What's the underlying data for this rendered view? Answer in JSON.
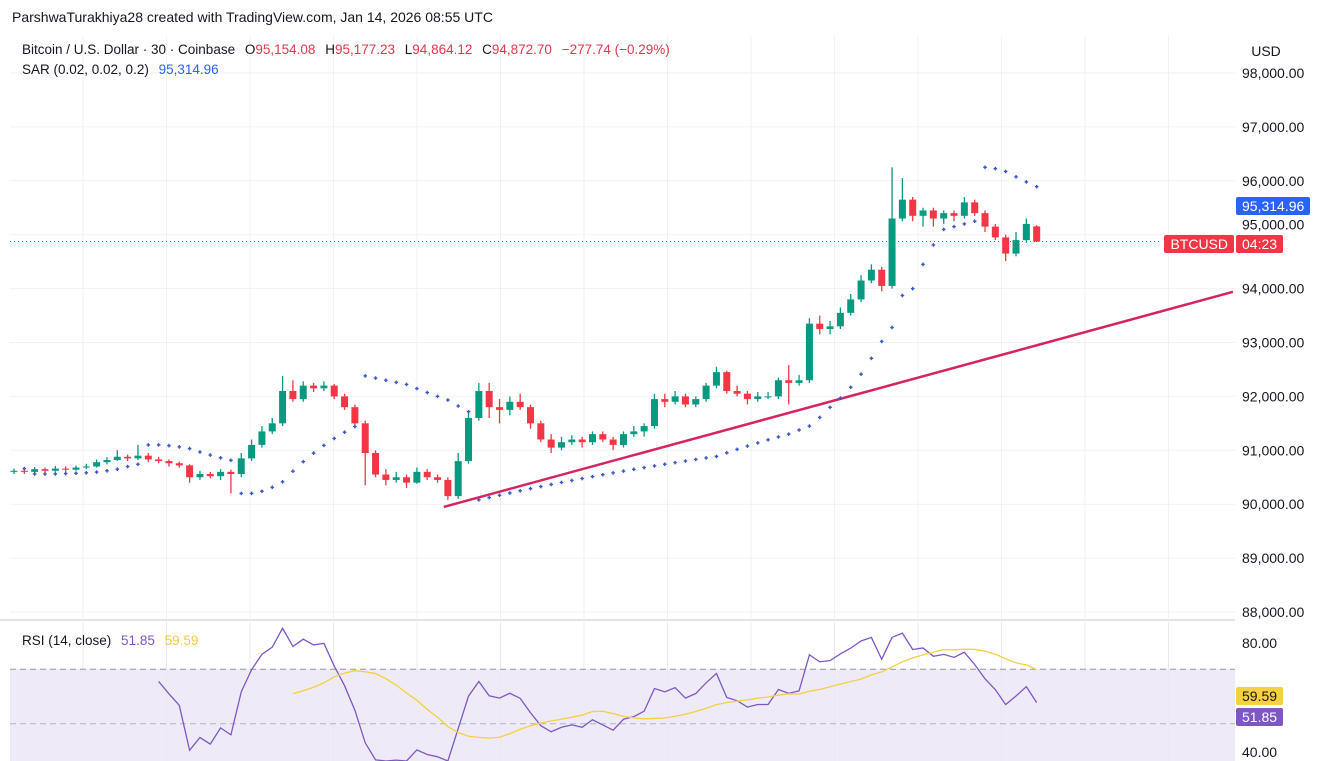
{
  "watermark": "ParshwaTurakhiya28 created with TradingView.com, Jan 14, 2026 08:55 UTC",
  "legend": {
    "symbol": "Bitcoin / U.S. Dollar · 30 · Coinbase",
    "o_label": "O",
    "o": "95,154.08",
    "h_label": "H",
    "h": "95,177.23",
    "l_label": "L",
    "l": "94,864.12",
    "c_label": "C",
    "c": "94,872.70",
    "change": "−277.74 (−0.29%)"
  },
  "sar": {
    "label": "SAR (0.02, 0.02, 0.2)",
    "value": "95,314.96"
  },
  "rsi": {
    "label": "RSI (14, close)",
    "value": "51.85",
    "ma": "59.59"
  },
  "axis": {
    "currency": "USD",
    "ticker": "BTCUSD",
    "countdown": "04:23",
    "last_price": 94872.7,
    "sar_price": 95314.96
  },
  "colors": {
    "up": "#089981",
    "down": "#f23645",
    "sar": "#3b55c9",
    "trendline": "#d6245e",
    "rsi": "#7e57c2",
    "rsi_ma": "#f5d040",
    "rsi_band": "#efeaf8",
    "sar_tag": "#2962ff",
    "price_tag": "#f23645"
  },
  "chart_data": {
    "type": "candlestick",
    "interval": "30",
    "ylim": [
      87650,
      98400
    ],
    "yticks": [
      "98,000.00",
      "97,000.00",
      "96,000.00",
      "95,000.00",
      "94,000.00",
      "93,000.00",
      "92,000.00",
      "91,000.00",
      "90,000.00",
      "89,000.00",
      "88,000.00"
    ],
    "ytick_values": [
      98000,
      97000,
      96000,
      95000,
      94000,
      93000,
      92000,
      91000,
      90000,
      89000,
      88000
    ],
    "grid": true,
    "candles": [
      [
        90600,
        90660,
        90560,
        90620
      ],
      [
        90620,
        90650,
        90560,
        90600
      ],
      [
        90600,
        90690,
        90580,
        90650
      ],
      [
        90650,
        90680,
        90580,
        90620
      ],
      [
        90620,
        90710,
        90600,
        90660
      ],
      [
        90660,
        90700,
        90600,
        90640
      ],
      [
        90640,
        90720,
        90620,
        90680
      ],
      [
        90680,
        90750,
        90650,
        90700
      ],
      [
        90700,
        90830,
        90680,
        90780
      ],
      [
        90780,
        90870,
        90740,
        90820
      ],
      [
        90820,
        91000,
        90800,
        90880
      ],
      [
        90880,
        90920,
        90800,
        90850
      ],
      [
        90850,
        91100,
        90820,
        90900
      ],
      [
        90900,
        90950,
        90780,
        90830
      ],
      [
        90830,
        90880,
        90760,
        90800
      ],
      [
        90800,
        90830,
        90700,
        90760
      ],
      [
        90760,
        90790,
        90680,
        90720
      ],
      [
        90720,
        90740,
        90400,
        90500
      ],
      [
        90500,
        90620,
        90450,
        90560
      ],
      [
        90560,
        90600,
        90480,
        90520
      ],
      [
        90520,
        90650,
        90450,
        90600
      ],
      [
        90600,
        90640,
        90200,
        90560
      ],
      [
        90560,
        90950,
        90500,
        90850
      ],
      [
        90850,
        91200,
        90800,
        91100
      ],
      [
        91100,
        91450,
        91050,
        91350
      ],
      [
        91350,
        91600,
        91300,
        91500
      ],
      [
        91500,
        92380,
        91450,
        92100
      ],
      [
        92100,
        92300,
        91900,
        91950
      ],
      [
        91950,
        92280,
        91900,
        92200
      ],
      [
        92200,
        92250,
        92080,
        92150
      ],
      [
        92150,
        92280,
        92100,
        92200
      ],
      [
        92200,
        92230,
        91950,
        92000
      ],
      [
        92000,
        92050,
        91750,
        91800
      ],
      [
        91800,
        91850,
        91450,
        91500
      ],
      [
        91500,
        91550,
        90350,
        90950
      ],
      [
        90950,
        91000,
        90500,
        90550
      ],
      [
        90550,
        90650,
        90350,
        90450
      ],
      [
        90450,
        90600,
        90400,
        90500
      ],
      [
        90500,
        90550,
        90300,
        90400
      ],
      [
        90400,
        90680,
        90380,
        90600
      ],
      [
        90600,
        90650,
        90450,
        90500
      ],
      [
        90500,
        90550,
        90400,
        90450
      ],
      [
        90450,
        90500,
        90080,
        90150
      ],
      [
        90150,
        90950,
        90100,
        90800
      ],
      [
        90800,
        91700,
        90750,
        91600
      ],
      [
        91600,
        92250,
        91550,
        92100
      ],
      [
        92100,
        92250,
        91600,
        91800
      ],
      [
        91800,
        91950,
        91500,
        91750
      ],
      [
        91750,
        92000,
        91650,
        91900
      ],
      [
        91900,
        92050,
        91750,
        91800
      ],
      [
        91800,
        91850,
        91400,
        91500
      ],
      [
        91500,
        91550,
        91150,
        91200
      ],
      [
        91200,
        91300,
        90950,
        91050
      ],
      [
        91050,
        91250,
        91000,
        91150
      ],
      [
        91150,
        91280,
        91100,
        91200
      ],
      [
        91200,
        91250,
        91050,
        91150
      ],
      [
        91150,
        91350,
        91100,
        91300
      ],
      [
        91300,
        91350,
        91150,
        91200
      ],
      [
        91200,
        91250,
        91000,
        91100
      ],
      [
        91100,
        91350,
        91050,
        91300
      ],
      [
        91300,
        91450,
        91250,
        91350
      ],
      [
        91350,
        91500,
        91250,
        91450
      ],
      [
        91450,
        92050,
        91400,
        91950
      ],
      [
        91950,
        92050,
        91800,
        91900
      ],
      [
        91900,
        92100,
        91850,
        92000
      ],
      [
        92000,
        92050,
        91800,
        91850
      ],
      [
        91850,
        92000,
        91800,
        91950
      ],
      [
        91950,
        92250,
        91900,
        92200
      ],
      [
        92200,
        92550,
        92150,
        92450
      ],
      [
        92450,
        92480,
        92050,
        92100
      ],
      [
        92100,
        92200,
        92000,
        92050
      ],
      [
        92050,
        92100,
        91850,
        91950
      ],
      [
        91950,
        92080,
        91900,
        92000
      ],
      [
        92000,
        92080,
        91950,
        92000
      ],
      [
        92000,
        92350,
        91950,
        92300
      ],
      [
        92300,
        92580,
        91850,
        92250
      ],
      [
        92250,
        92400,
        92200,
        92300
      ],
      [
        92300,
        93450,
        92250,
        93350
      ],
      [
        93350,
        93500,
        93150,
        93250
      ],
      [
        93250,
        93400,
        93150,
        93300
      ],
      [
        93300,
        93650,
        93250,
        93550
      ],
      [
        93550,
        93900,
        93500,
        93800
      ],
      [
        93800,
        94250,
        93750,
        94150
      ],
      [
        94150,
        94450,
        94100,
        94350
      ],
      [
        94350,
        94400,
        93950,
        94050
      ],
      [
        94050,
        96250,
        94000,
        95300
      ],
      [
        95300,
        96050,
        95250,
        95650
      ],
      [
        95650,
        95700,
        95250,
        95350
      ],
      [
        95350,
        95500,
        95150,
        95450
      ],
      [
        95450,
        95500,
        95150,
        95300
      ],
      [
        95300,
        95450,
        95200,
        95400
      ],
      [
        95400,
        95450,
        95250,
        95350
      ],
      [
        95350,
        95700,
        95300,
        95600
      ],
      [
        95600,
        95650,
        95350,
        95400
      ],
      [
        95400,
        95450,
        95050,
        95150
      ],
      [
        95150,
        95200,
        94900,
        94950
      ],
      [
        94950,
        95000,
        94510,
        94650
      ],
      [
        94650,
        95050,
        94600,
        94900
      ],
      [
        94900,
        95300,
        94850,
        95200
      ],
      [
        95154.08,
        95177.23,
        94864.12,
        94872.7
      ]
    ],
    "sar_params": {
      "start": 0.02,
      "increment": 0.02,
      "max": 0.2
    },
    "trendline": {
      "points": [
        {
          "bar": 41.6,
          "price": 89950
        },
        {
          "bar": 118,
          "price": 93940
        }
      ]
    },
    "rsi_pane": {
      "period": 14,
      "ma_period": 14,
      "ylim": [
        40,
        80
      ],
      "yticks": [
        "80.00",
        "40.00"
      ],
      "ytick_values": [
        80,
        40
      ],
      "bands": [
        70,
        50,
        30
      ]
    }
  }
}
